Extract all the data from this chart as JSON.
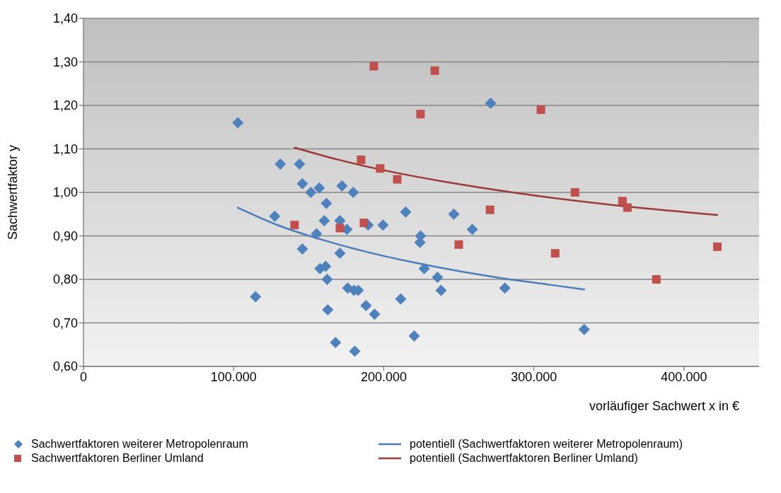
{
  "chart_data": {
    "type": "scatter",
    "xlabel": "vorläufiger Sachwert  x  in €",
    "ylabel": "Sachwertfaktor  y",
    "xlim": [
      0,
      450000
    ],
    "xticks": [
      {
        "value": 0,
        "label": "0"
      },
      {
        "value": 100000,
        "label": "100.000"
      },
      {
        "value": 200000,
        "label": "200.000"
      },
      {
        "value": 300000,
        "label": "300.000"
      },
      {
        "value": 400000,
        "label": "400.000"
      }
    ],
    "ylim": [
      0.6,
      1.4
    ],
    "yticks": [
      {
        "value": 0.6,
        "label": "0,60"
      },
      {
        "value": 0.7,
        "label": "0,70"
      },
      {
        "value": 0.8,
        "label": "0,80"
      },
      {
        "value": 0.9,
        "label": "0,90"
      },
      {
        "value": 1.0,
        "label": "1,00"
      },
      {
        "value": 1.1,
        "label": "1,10"
      },
      {
        "value": 1.2,
        "label": "1,20"
      },
      {
        "value": 1.3,
        "label": "1,30"
      },
      {
        "value": 1.4,
        "label": "1,40"
      }
    ],
    "grid": "y",
    "legend": "bottom",
    "series": [
      {
        "name": "Sachwertfaktoren weiterer Metropolenraum",
        "marker": "diamond",
        "color": "#4f81bd",
        "x": [
          102800,
          114600,
          127400,
          131100,
          143900,
          145800,
          151400,
          155200,
          145800,
          157500,
          157100,
          160400,
          161800,
          161300,
          162300,
          162700,
          167900,
          170800,
          172200,
          175500,
          170800,
          176000,
          179700,
          180200,
          183000,
          180700,
          188200,
          189600,
          193900,
          199500,
          214600,
          211300,
          220300,
          224100,
          224500,
          226900,
          235800,
          238200,
          246700,
          259000,
          271200,
          280700,
          333500
        ],
        "values": [
          1.16,
          0.76,
          0.945,
          1.065,
          1.065,
          1.02,
          1.0,
          0.905,
          0.87,
          0.825,
          1.01,
          0.935,
          0.975,
          0.83,
          0.8,
          0.73,
          0.655,
          0.935,
          1.015,
          0.915,
          0.86,
          0.78,
          1.0,
          0.775,
          0.775,
          0.635,
          0.74,
          0.925,
          0.72,
          0.925,
          0.955,
          0.755,
          0.67,
          0.885,
          0.9,
          0.825,
          0.805,
          0.775,
          0.95,
          0.915,
          1.205,
          0.78,
          0.685
        ]
      },
      {
        "name": "Sachwertfaktoren Berliner Umland",
        "marker": "square",
        "color": "#c0504d",
        "x": [
          193400,
          234000,
          224500,
          304700,
          184900,
          197600,
          209000,
          140600,
          170800,
          186800,
          250000,
          270800,
          314200,
          327400,
          359000,
          362300,
          381600,
          422200
        ],
        "values": [
          1.29,
          1.28,
          1.18,
          1.19,
          1.075,
          1.055,
          1.03,
          0.925,
          0.918,
          0.93,
          0.88,
          0.96,
          0.86,
          1.0,
          0.98,
          0.965,
          0.8,
          0.875
        ]
      },
      {
        "name": "potentiell (Sachwertfaktoren weiterer Metropolenraum)",
        "type": "line",
        "marker": "none",
        "color": "#4a7ebb",
        "x": [
          102800,
          130000,
          160000,
          190000,
          220000,
          250000,
          280000,
          310000,
          333500
        ],
        "values": [
          0.965,
          0.924,
          0.89,
          0.862,
          0.839,
          0.819,
          0.802,
          0.788,
          0.777
        ]
      },
      {
        "name": "potentiell (Sachwertfaktoren Berliner Umland)",
        "type": "line",
        "marker": "none",
        "color": "#9b3a36",
        "x": [
          140600,
          170000,
          200000,
          250000,
          300000,
          350000,
          400000,
          422200
        ],
        "values": [
          1.103,
          1.075,
          1.051,
          1.019,
          0.993,
          0.972,
          0.955,
          0.948
        ]
      }
    ]
  }
}
